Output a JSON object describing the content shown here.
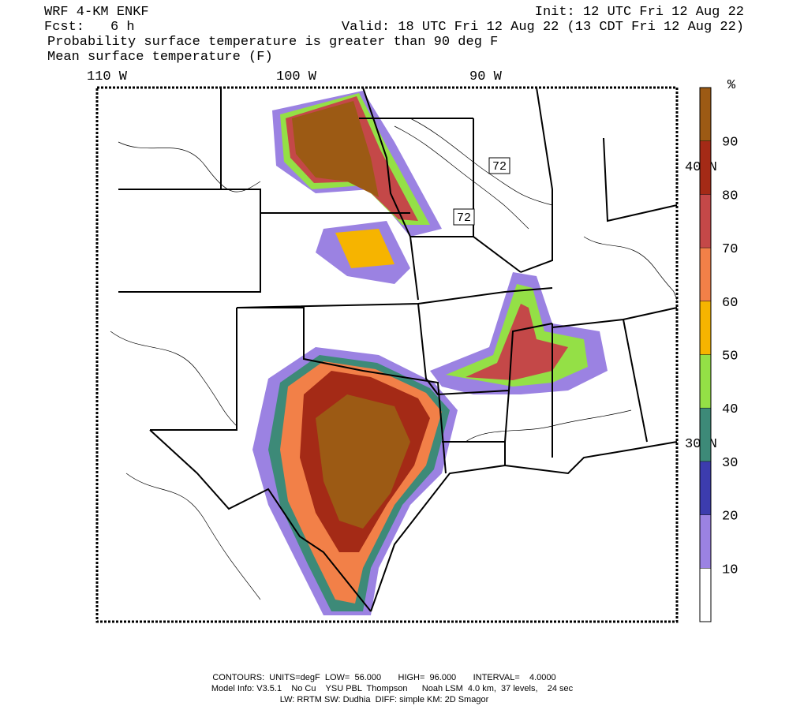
{
  "header": {
    "model": "WRF 4-KM ENKF",
    "init": "Init: 12 UTC Fri 12 Aug 22",
    "fcst_label": "Fcst:",
    "fcst": "6 h",
    "valid": "Valid: 18 UTC Fri 12 Aug 22 (13 CDT Fri 12 Aug 22)",
    "line3": "Probability surface temperature is greater than 90 deg F",
    "line4": "Mean surface temperature (F)"
  },
  "map": {
    "lon_labels": [
      "110 W",
      "100 W",
      "90 W"
    ],
    "lat_labels": [
      "40 N",
      "30 N"
    ],
    "contour_labels": [
      "72",
      "72"
    ]
  },
  "colorbar": {
    "unit": "%",
    "ticks": [
      10,
      20,
      30,
      40,
      50,
      60,
      70,
      80,
      90
    ],
    "colors": [
      "#ffffff",
      "#9b82e2",
      "#3c3cae",
      "#3d8a78",
      "#94e046",
      "#f6b400",
      "#f28048",
      "#c44848",
      "#a42a16",
      "#9c5a14"
    ]
  },
  "footer": {
    "line1": "CONTOURS:  UNITS=degF  LOW=  56.000       HIGH=  96.000       INTERVAL=    4.0000",
    "line2": "Model Info: V3.5.1    No Cu    YSU PBL  Thompson      Noah LSM  4.0 km,  37 levels,    24 sec",
    "line3": "LW: RRTM SW: Dudhia  DIFF: simple KM: 2D Smagor"
  }
}
